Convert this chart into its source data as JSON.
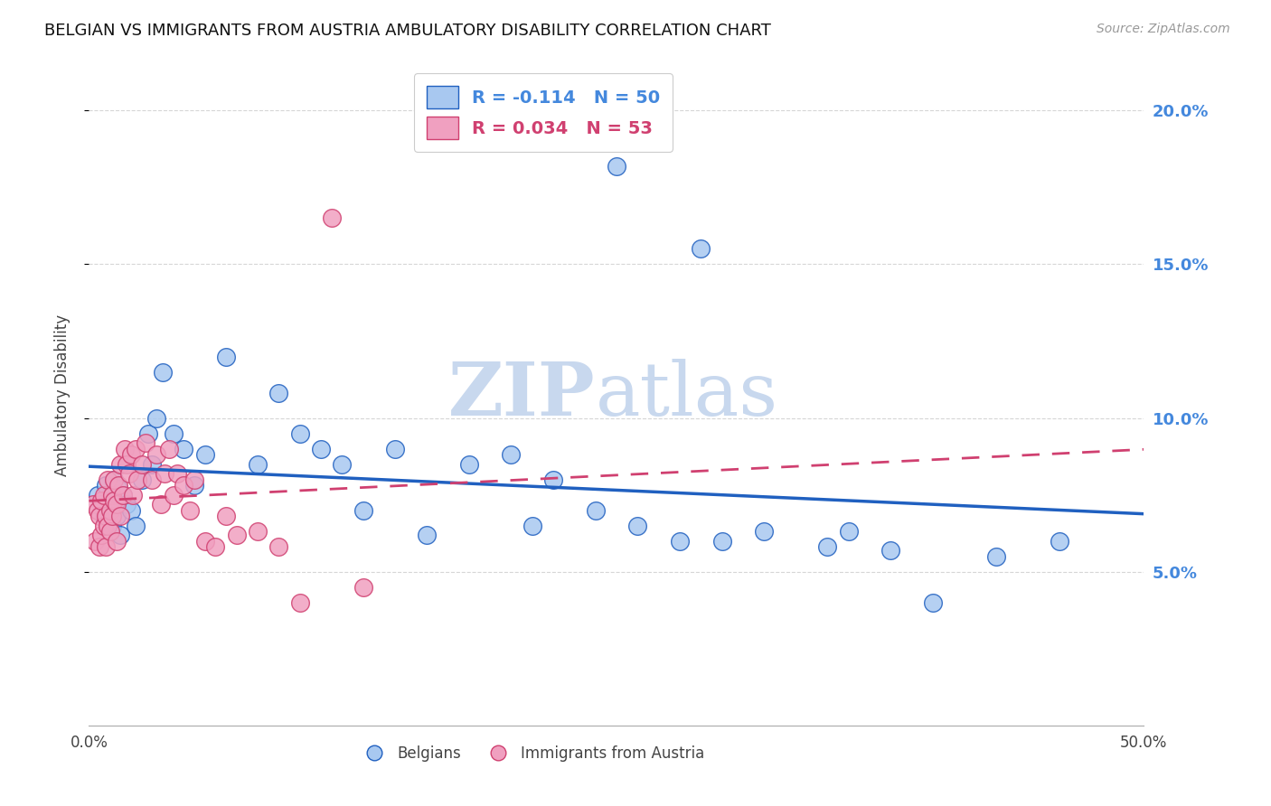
{
  "title": "BELGIAN VS IMMIGRANTS FROM AUSTRIA AMBULATORY DISABILITY CORRELATION CHART",
  "source": "Source: ZipAtlas.com",
  "ylabel": "Ambulatory Disability",
  "xlim": [
    0.0,
    0.5
  ],
  "ylim": [
    0.0,
    0.215
  ],
  "yticks": [
    0.05,
    0.1,
    0.15,
    0.2
  ],
  "ytick_labels": [
    "5.0%",
    "10.0%",
    "15.0%",
    "20.0%"
  ],
  "xticks": [
    0.0,
    0.1,
    0.2,
    0.3,
    0.4,
    0.5
  ],
  "xtick_labels": [
    "0.0%",
    "",
    "",
    "",
    "",
    "50.0%"
  ],
  "belgian_R": -0.114,
  "belgian_N": 50,
  "austrian_R": 0.034,
  "austrian_N": 53,
  "belgian_color": "#a8c8f0",
  "austrian_color": "#f0a0c0",
  "belgian_line_color": "#2060c0",
  "austrian_line_color": "#d04070",
  "belgians_x": [
    0.004,
    0.006,
    0.007,
    0.008,
    0.009,
    0.01,
    0.011,
    0.012,
    0.013,
    0.014,
    0.015,
    0.016,
    0.018,
    0.02,
    0.022,
    0.025,
    0.028,
    0.03,
    0.032,
    0.035,
    0.04,
    0.045,
    0.05,
    0.055,
    0.065,
    0.08,
    0.09,
    0.1,
    0.11,
    0.12,
    0.13,
    0.145,
    0.16,
    0.18,
    0.2,
    0.21,
    0.22,
    0.24,
    0.25,
    0.26,
    0.28,
    0.29,
    0.3,
    0.32,
    0.35,
    0.36,
    0.38,
    0.4,
    0.43,
    0.46
  ],
  "belgians_y": [
    0.075,
    0.072,
    0.068,
    0.078,
    0.07,
    0.073,
    0.065,
    0.08,
    0.068,
    0.077,
    0.062,
    0.075,
    0.072,
    0.07,
    0.065,
    0.08,
    0.095,
    0.085,
    0.1,
    0.115,
    0.095,
    0.09,
    0.078,
    0.088,
    0.12,
    0.085,
    0.108,
    0.095,
    0.09,
    0.085,
    0.07,
    0.09,
    0.062,
    0.085,
    0.088,
    0.065,
    0.08,
    0.07,
    0.182,
    0.065,
    0.06,
    0.155,
    0.06,
    0.063,
    0.058,
    0.063,
    0.057,
    0.04,
    0.055,
    0.06
  ],
  "austrians_x": [
    0.002,
    0.003,
    0.004,
    0.005,
    0.005,
    0.006,
    0.006,
    0.007,
    0.007,
    0.008,
    0.008,
    0.009,
    0.009,
    0.01,
    0.01,
    0.011,
    0.011,
    0.012,
    0.012,
    0.013,
    0.013,
    0.014,
    0.015,
    0.015,
    0.016,
    0.017,
    0.018,
    0.019,
    0.02,
    0.021,
    0.022,
    0.023,
    0.025,
    0.027,
    0.03,
    0.032,
    0.034,
    0.036,
    0.038,
    0.04,
    0.042,
    0.045,
    0.048,
    0.05,
    0.055,
    0.06,
    0.065,
    0.07,
    0.08,
    0.09,
    0.1,
    0.115,
    0.13
  ],
  "austrians_y": [
    0.072,
    0.06,
    0.07,
    0.068,
    0.058,
    0.073,
    0.062,
    0.065,
    0.075,
    0.068,
    0.058,
    0.08,
    0.065,
    0.07,
    0.063,
    0.075,
    0.068,
    0.073,
    0.08,
    0.06,
    0.072,
    0.078,
    0.068,
    0.085,
    0.075,
    0.09,
    0.085,
    0.082,
    0.088,
    0.075,
    0.09,
    0.08,
    0.085,
    0.092,
    0.08,
    0.088,
    0.072,
    0.082,
    0.09,
    0.075,
    0.082,
    0.078,
    0.07,
    0.08,
    0.06,
    0.058,
    0.068,
    0.062,
    0.063,
    0.058,
    0.04,
    0.165,
    0.045
  ],
  "watermark_zip": "ZIP",
  "watermark_atlas": "atlas",
  "watermark_color": "#c8d8ee",
  "background_color": "#ffffff",
  "grid_color": "#cccccc",
  "right_axis_color": "#4488dd"
}
